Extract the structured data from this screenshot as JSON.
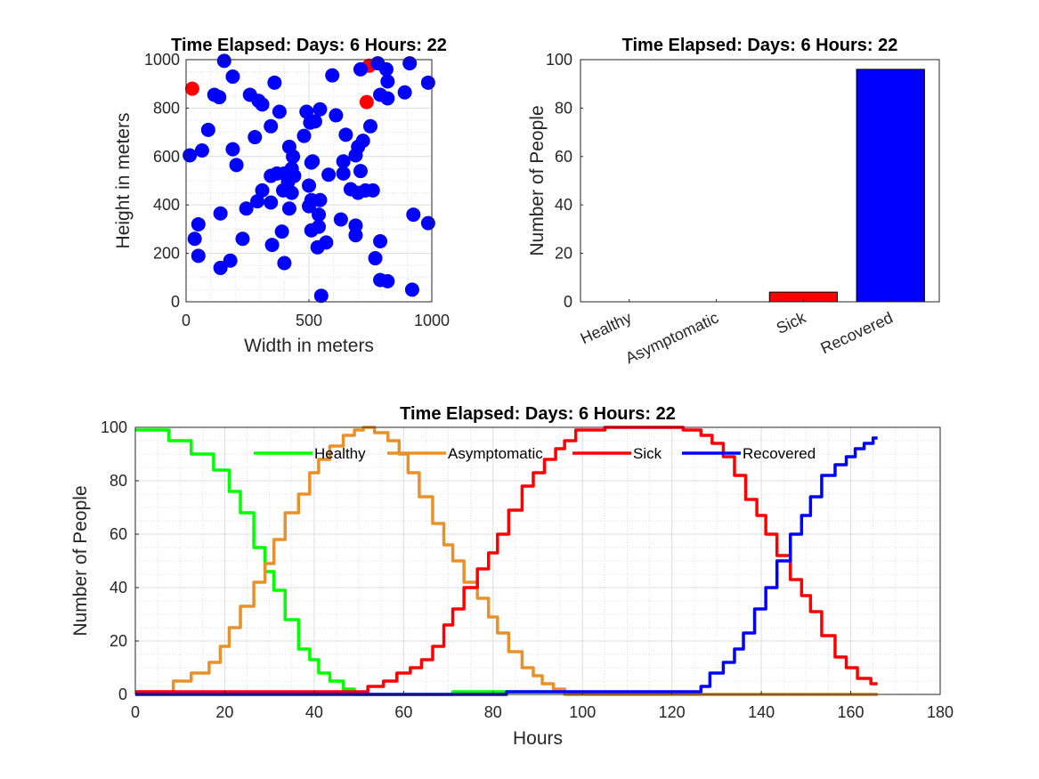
{
  "chart_data": [
    {
      "id": "scatter",
      "type": "scatter",
      "title": "Time Elapsed: Days: 6 Hours: 22",
      "xlabel": "Width in meters",
      "ylabel": "Height in meters",
      "xlim": [
        0,
        1000
      ],
      "ylim": [
        0,
        1000
      ],
      "xticks": [
        0,
        500,
        1000
      ],
      "yticks": [
        0,
        200,
        400,
        600,
        800,
        1000
      ],
      "grid": true,
      "series": [
        {
          "color": "#ff0000",
          "points": [
            [
              25,
              880
            ],
            [
              735,
              825
            ],
            [
              745,
              975
            ]
          ]
        },
        {
          "color": "#0000ff",
          "points": [
            [
              155,
              995
            ],
            [
              190,
              930
            ],
            [
              260,
              855
            ],
            [
              115,
              855
            ],
            [
              135,
              845
            ],
            [
              295,
              830
            ],
            [
              310,
              815
            ],
            [
              360,
              905
            ],
            [
              345,
              725
            ],
            [
              380,
              785
            ],
            [
              280,
              680
            ],
            [
              90,
              710
            ],
            [
              65,
              625
            ],
            [
              15,
              605
            ],
            [
              190,
              630
            ],
            [
              205,
              565
            ],
            [
              420,
              640
            ],
            [
              435,
              600
            ],
            [
              430,
              550
            ],
            [
              440,
              520
            ],
            [
              415,
              495
            ],
            [
              400,
              530
            ],
            [
              370,
              530
            ],
            [
              345,
              520
            ],
            [
              310,
              460
            ],
            [
              290,
              415
            ],
            [
              345,
              410
            ],
            [
              395,
              460
            ],
            [
              430,
              450
            ],
            [
              420,
              385
            ],
            [
              245,
              385
            ],
            [
              140,
              365
            ],
            [
              50,
              320
            ],
            [
              35,
              260
            ],
            [
              50,
              190
            ],
            [
              230,
              260
            ],
            [
              180,
              170
            ],
            [
              140,
              140
            ],
            [
              350,
              235
            ],
            [
              390,
              290
            ],
            [
              400,
              160
            ],
            [
              510,
              295
            ],
            [
              535,
              225
            ],
            [
              540,
              310
            ],
            [
              540,
              360
            ],
            [
              510,
              420
            ],
            [
              545,
              420
            ],
            [
              500,
              480
            ],
            [
              500,
              395
            ],
            [
              515,
              580
            ],
            [
              510,
              575
            ],
            [
              480,
              685
            ],
            [
              505,
              740
            ],
            [
              490,
              785
            ],
            [
              525,
              745
            ],
            [
              545,
              795
            ],
            [
              595,
              935
            ],
            [
              610,
              770
            ],
            [
              650,
              690
            ],
            [
              640,
              580
            ],
            [
              580,
              525
            ],
            [
              640,
              530
            ],
            [
              690,
              605
            ],
            [
              710,
              540
            ],
            [
              670,
              465
            ],
            [
              700,
              450
            ],
            [
              730,
              460
            ],
            [
              760,
              460
            ],
            [
              750,
              725
            ],
            [
              720,
              665
            ],
            [
              700,
              640
            ],
            [
              710,
              960
            ],
            [
              780,
              985
            ],
            [
              815,
              960
            ],
            [
              820,
              910
            ],
            [
              790,
              855
            ],
            [
              820,
              840
            ],
            [
              890,
              865
            ],
            [
              910,
              985
            ],
            [
              985,
              905
            ],
            [
              925,
              360
            ],
            [
              985,
              325
            ],
            [
              790,
              250
            ],
            [
              770,
              180
            ],
            [
              790,
              90
            ],
            [
              820,
              85
            ],
            [
              920,
              50
            ],
            [
              690,
              315
            ],
            [
              690,
              275
            ],
            [
              630,
              340
            ],
            [
              570,
              245
            ],
            [
              550,
              25
            ]
          ]
        }
      ]
    },
    {
      "id": "bar",
      "type": "bar",
      "title": "Time Elapsed: Days: 6 Hours: 22",
      "xlabel": "",
      "ylabel": "Number of People",
      "categories": [
        "Healthy",
        "Asymptomatic",
        "Sick",
        "Recovered"
      ],
      "values": [
        0,
        0,
        4,
        96
      ],
      "colors": [
        "#00ff00",
        "#ffa500",
        "#ff0000",
        "#0000ff"
      ],
      "ylim": [
        0,
        100
      ],
      "yticks": [
        0,
        20,
        40,
        60,
        80,
        100
      ],
      "grid": false
    },
    {
      "id": "line",
      "type": "line",
      "title": "Time Elapsed: Days: 6 Hours: 22",
      "xlabel": "Hours",
      "ylabel": "Number of People",
      "xlim": [
        0,
        180
      ],
      "ylim": [
        0,
        100
      ],
      "xticks": [
        0,
        20,
        40,
        60,
        80,
        100,
        120,
        140,
        160,
        180
      ],
      "yticks": [
        0,
        20,
        40,
        60,
        80,
        100
      ],
      "grid": true,
      "legend_position": "top",
      "series": [
        {
          "name": "Healthy",
          "color": "#00ff00",
          "x": [
            0,
            5,
            10,
            15,
            20,
            22,
            25,
            28,
            30,
            32,
            35,
            38,
            40,
            42,
            45,
            48,
            50,
            55,
            60,
            70,
            72,
            96,
            97,
            100,
            166
          ],
          "y": [
            99,
            99,
            95,
            90,
            84,
            76,
            68,
            55,
            46,
            39,
            28,
            17,
            13,
            8,
            5,
            2,
            0,
            0,
            0,
            0,
            1,
            1,
            0,
            0,
            0
          ]
        },
        {
          "name": "Asymptomatic",
          "color": "#e8902a",
          "x": [
            0,
            7,
            10,
            15,
            18,
            20,
            22,
            25,
            28,
            30,
            32,
            35,
            38,
            40,
            42,
            45,
            48,
            50,
            52,
            55,
            58,
            60,
            62,
            65,
            68,
            70,
            72,
            75,
            78,
            80,
            82,
            85,
            88,
            90,
            92,
            95,
            97,
            100,
            166
          ],
          "y": [
            1,
            1,
            5,
            8,
            12,
            18,
            25,
            33,
            42,
            49,
            58,
            68,
            75,
            83,
            88,
            93,
            97,
            99,
            100,
            98,
            95,
            90,
            83,
            74,
            64,
            56,
            50,
            42,
            36,
            29,
            23,
            16,
            10,
            7,
            4,
            2,
            0,
            0,
            0
          ]
        },
        {
          "name": "Sick",
          "color": "#ff0000",
          "x": [
            0,
            50,
            54,
            57,
            60,
            63,
            65,
            68,
            70,
            72,
            75,
            78,
            80,
            82,
            85,
            88,
            90,
            93,
            95,
            97,
            100,
            110,
            120,
            125,
            128,
            130,
            133,
            135,
            138,
            140,
            142,
            145,
            148,
            150,
            152,
            155,
            158,
            160,
            163,
            166
          ],
          "y": [
            1,
            1,
            3,
            5,
            8,
            10,
            13,
            18,
            26,
            32,
            40,
            47,
            53,
            60,
            69,
            78,
            83,
            88,
            92,
            95,
            99,
            100,
            100,
            99,
            97,
            94,
            89,
            82,
            73,
            67,
            60,
            52,
            43,
            37,
            31,
            22,
            14,
            10,
            6,
            4
          ]
        },
        {
          "name": "Recovered",
          "color": "#0000ff",
          "x": [
            0,
            70,
            96,
            120,
            126,
            127,
            130,
            133,
            135,
            137,
            140,
            142,
            145,
            148,
            150,
            152,
            155,
            158,
            160,
            162,
            164,
            166
          ],
          "y": [
            0,
            0,
            1,
            1,
            1,
            3,
            8,
            12,
            17,
            23,
            32,
            40,
            50,
            60,
            67,
            74,
            82,
            86,
            89,
            92,
            94,
            96
          ]
        }
      ]
    }
  ]
}
